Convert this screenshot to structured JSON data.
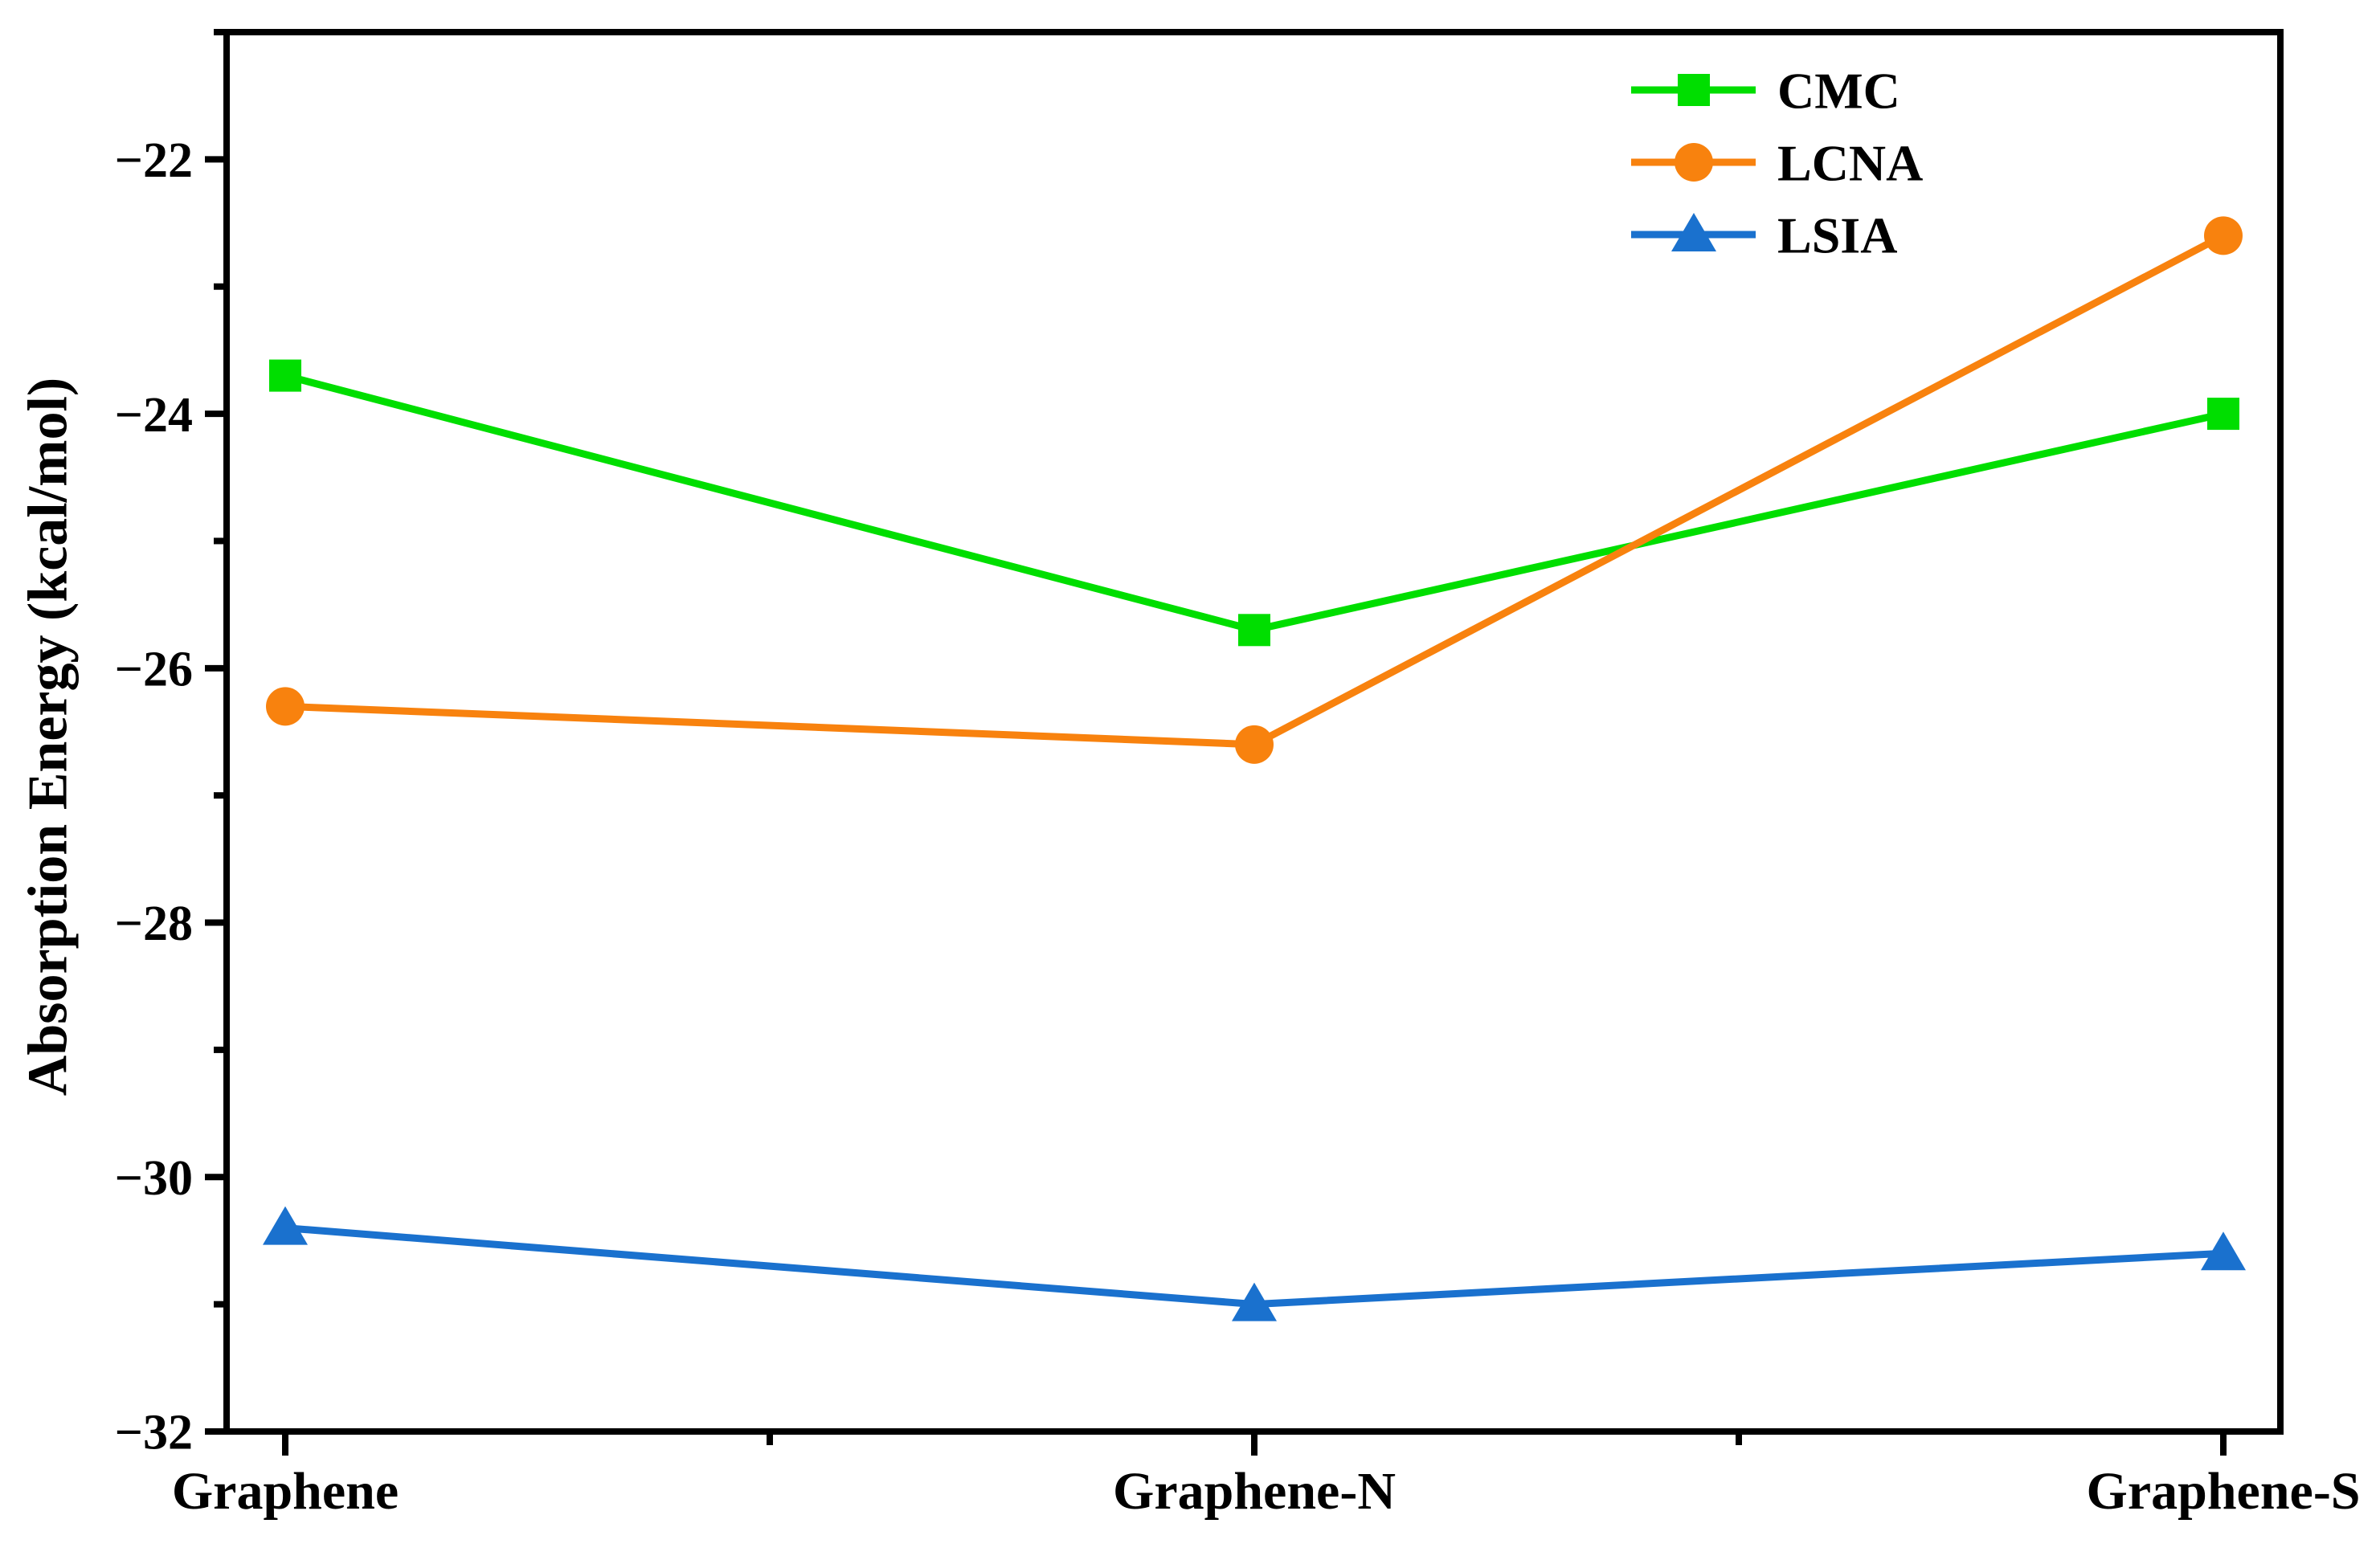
{
  "chart_data": {
    "type": "line",
    "title": "",
    "xlabel": "",
    "ylabel": "Absorption Energy (kcal/mol)",
    "categories": [
      "Graphene",
      "Graphene-N",
      "Graphene-S"
    ],
    "series": [
      {
        "name": "CMC",
        "marker": "square",
        "color": "#00de00",
        "values": [
          -23.7,
          -25.7,
          -24.0
        ]
      },
      {
        "name": "LCNA",
        "marker": "circle",
        "color": "#f8820e",
        "values": [
          -26.3,
          -26.6,
          -22.6
        ]
      },
      {
        "name": "LSIA",
        "marker": "triangle",
        "color": "#1a71ce",
        "values": [
          -30.4,
          -31.0,
          -30.6
        ]
      }
    ],
    "ylim": [
      -32,
      -21
    ],
    "yticks": [
      -32,
      -30,
      -28,
      -26,
      -24,
      -22
    ],
    "ytick_labels": [
      "−32",
      "−30",
      "−28",
      "−26",
      "−24",
      "−22"
    ],
    "yticks_minor": [
      -31,
      -29,
      -27,
      -25,
      -23,
      -21
    ],
    "grid": false,
    "legend_position": "top-right-inside",
    "axis_color": "#000000"
  }
}
